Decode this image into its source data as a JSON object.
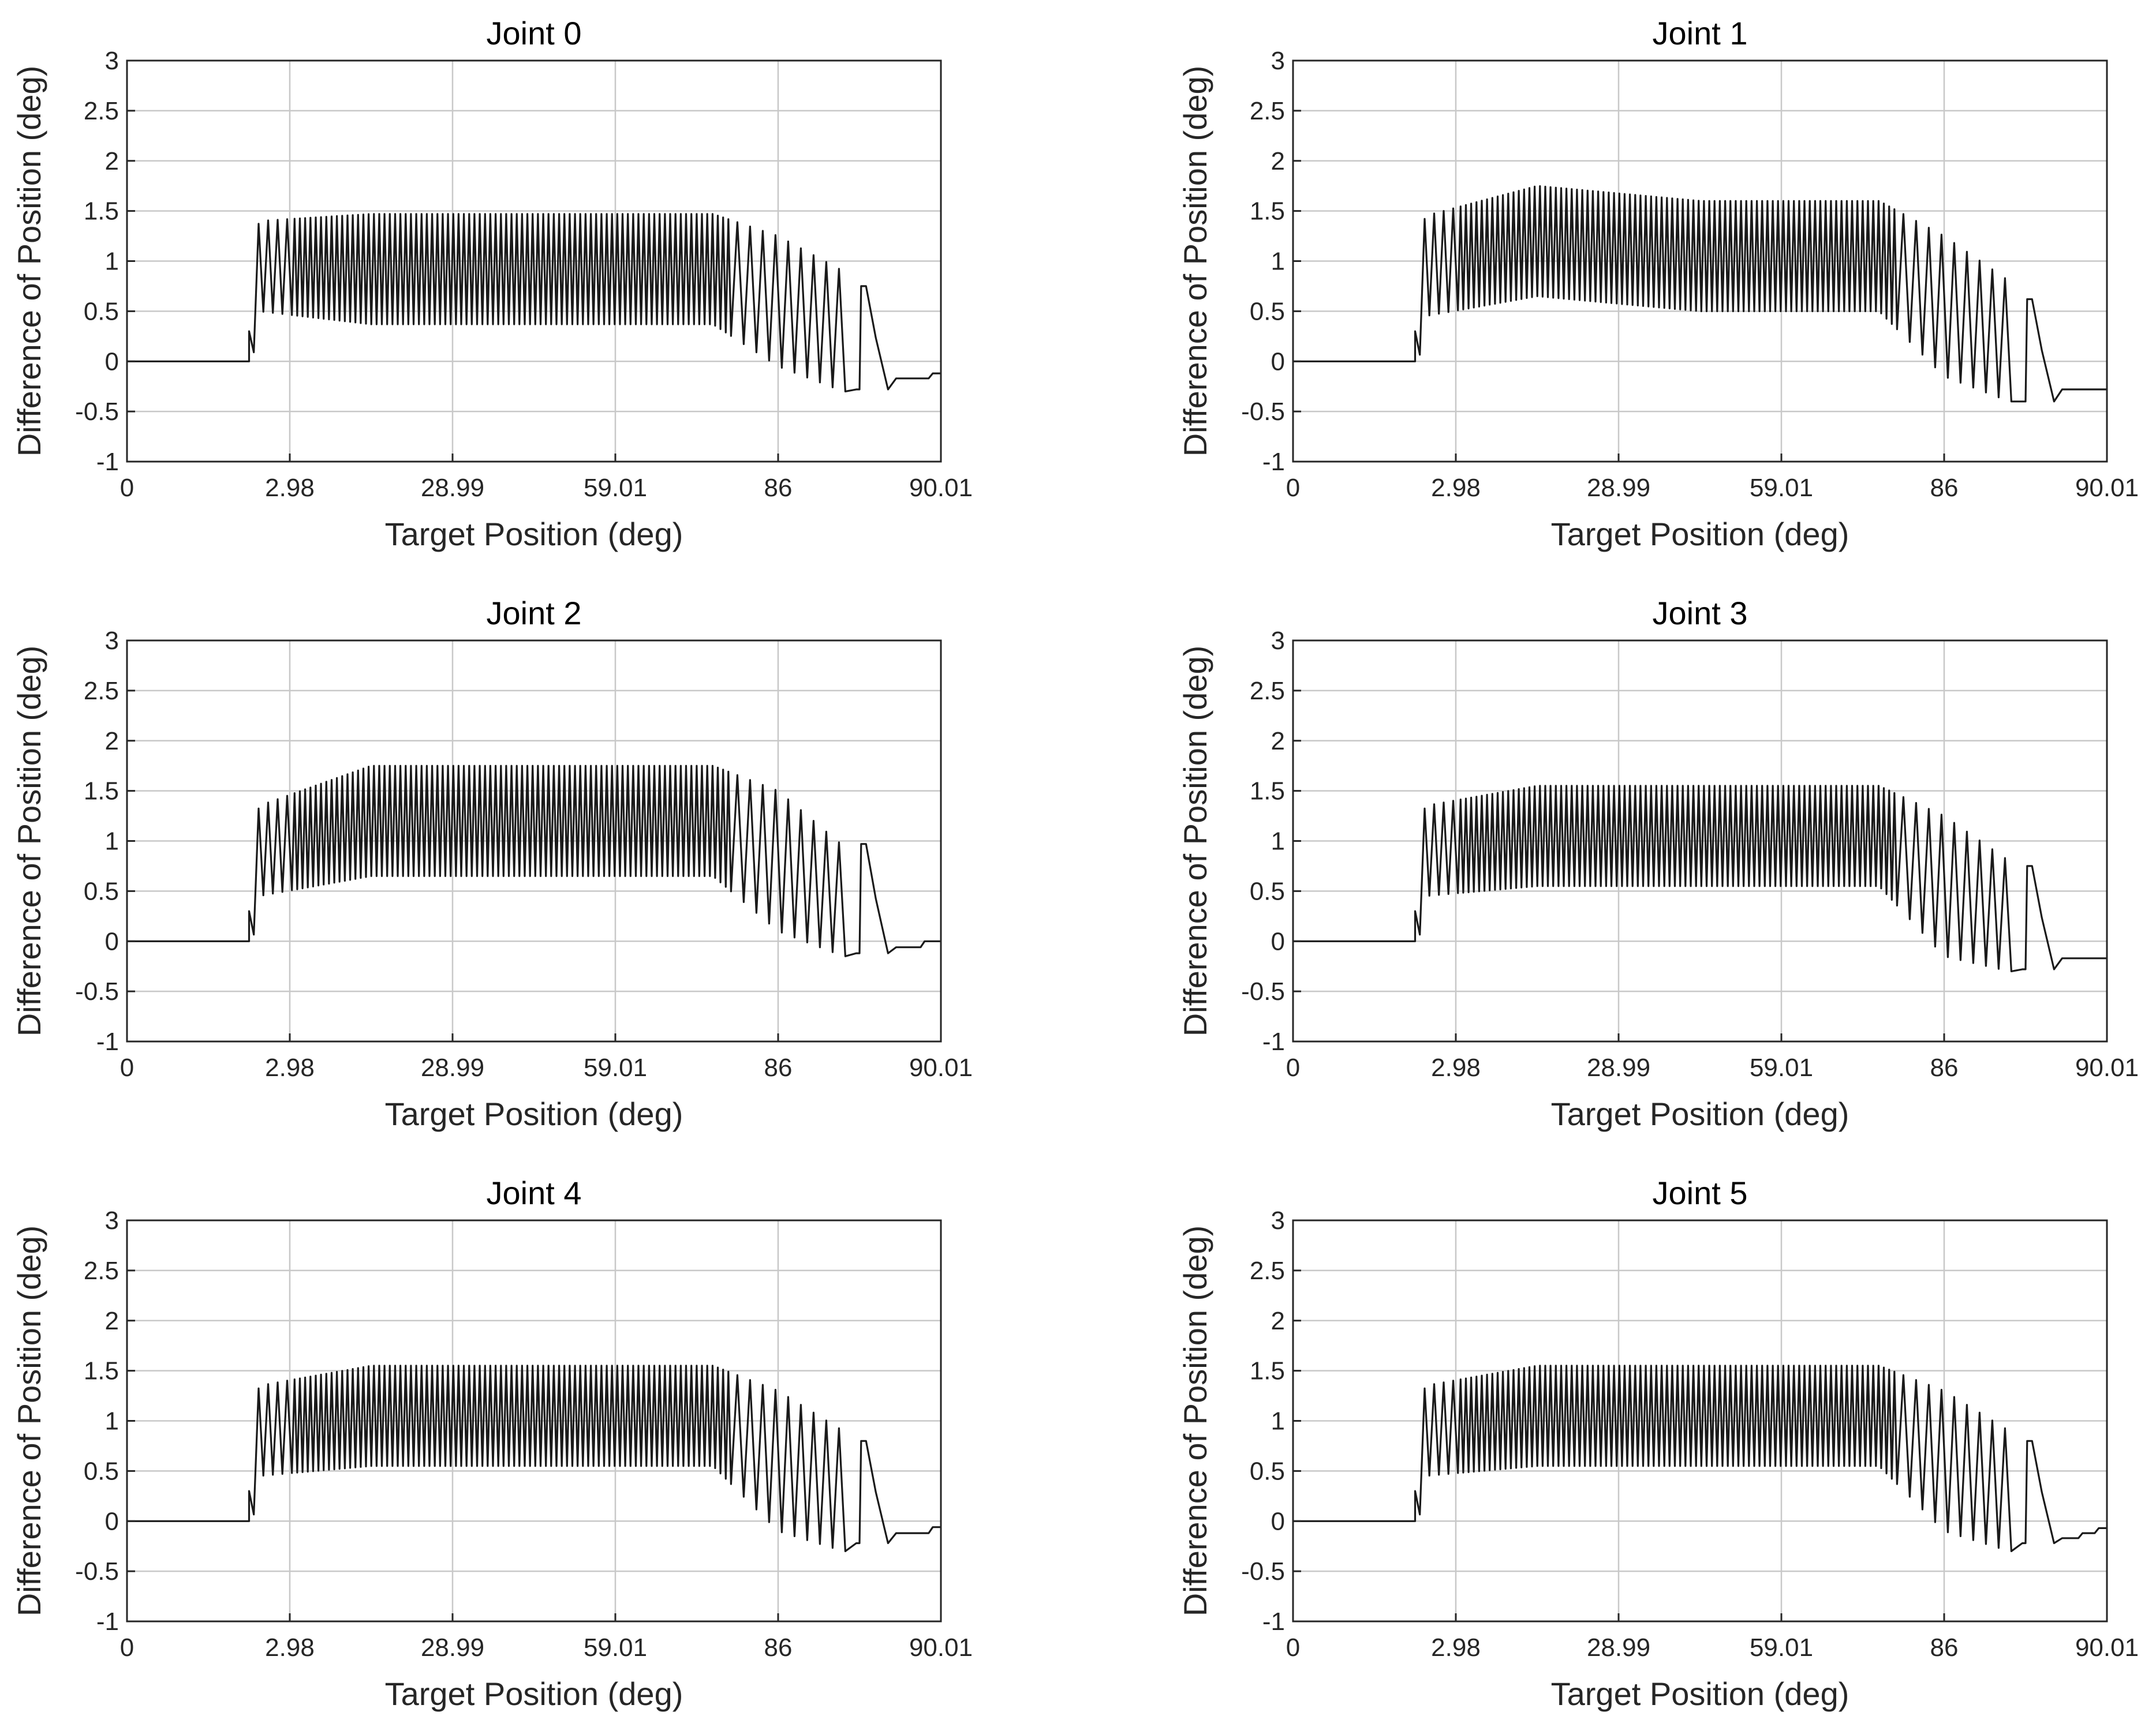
{
  "chart_data": [
    {
      "type": "line",
      "title": "Joint 0",
      "xlabel": "Target Position (deg)",
      "ylabel": "Difference of Position (deg)",
      "ylim": [
        -1,
        3
      ],
      "yticks": [
        -1,
        -0.5,
        0,
        0.5,
        1,
        1.5,
        2,
        2.5,
        3
      ],
      "ytick_labels": [
        "-1",
        "-0.5",
        "0",
        "0.5",
        "1",
        "1.5",
        "2",
        "2.5",
        "3"
      ],
      "xtick_labels": [
        "0",
        "2.98",
        "28.99",
        "59.01",
        "86",
        "90.01"
      ],
      "grid": true,
      "series": [
        {
          "name": "Joint 0",
          "color": "#1a1a1a",
          "profile": [
            [
              0.15,
              0.0
            ],
            [
              0.162,
              0.95
            ],
            [
              0.3,
              0.92
            ],
            [
              0.5,
              0.92
            ],
            [
              0.72,
              0.92
            ],
            [
              0.8,
              0.6
            ],
            [
              0.88,
              0.3
            ]
          ],
          "amplitude": [
            [
              0.15,
              0.3
            ],
            [
              0.162,
              0.45
            ],
            [
              0.3,
              0.55
            ],
            [
              0.72,
              0.55
            ],
            [
              0.8,
              0.65
            ],
            [
              0.88,
              0.6
            ]
          ],
          "osc_step": 0.0065,
          "late_spike": {
            "x": 0.9,
            "peak": 0.75,
            "floor": -0.28
          },
          "tail": [
            [
              0.935,
              -0.28
            ],
            [
              0.945,
              -0.17
            ],
            [
              0.985,
              -0.17
            ],
            [
              0.99,
              -0.12
            ],
            [
              1.0,
              -0.12
            ]
          ]
        }
      ]
    },
    {
      "type": "line",
      "title": "Joint 1",
      "xlabel": "Target Position (deg)",
      "ylabel": "Difference of Position (deg)",
      "ylim": [
        -1,
        3
      ],
      "yticks": [
        -1,
        -0.5,
        0,
        0.5,
        1,
        1.5,
        2,
        2.5,
        3
      ],
      "ytick_labels": [
        "-1",
        "-0.5",
        "0",
        "0.5",
        "1",
        "1.5",
        "2",
        "2.5",
        "3"
      ],
      "xtick_labels": [
        "0",
        "2.98",
        "28.99",
        "59.01",
        "86",
        "90.01"
      ],
      "grid": true,
      "series": [
        {
          "name": "Joint 1",
          "color": "#1a1a1a",
          "profile": [
            [
              0.15,
              0.0
            ],
            [
              0.162,
              0.95
            ],
            [
              0.3,
              1.2
            ],
            [
              0.5,
              1.05
            ],
            [
              0.72,
              1.05
            ],
            [
              0.8,
              0.55
            ],
            [
              0.88,
              0.2
            ]
          ],
          "amplitude": [
            [
              0.15,
              0.3
            ],
            [
              0.162,
              0.5
            ],
            [
              0.3,
              0.55
            ],
            [
              0.72,
              0.55
            ],
            [
              0.8,
              0.7
            ],
            [
              0.88,
              0.6
            ]
          ],
          "osc_step": 0.0065,
          "late_spike": {
            "x": 0.9,
            "peak": 0.62,
            "floor": -0.4
          },
          "tail": [
            [
              0.935,
              -0.4
            ],
            [
              0.945,
              -0.28
            ],
            [
              1.0,
              -0.28
            ]
          ]
        }
      ]
    },
    {
      "type": "line",
      "title": "Joint 2",
      "xlabel": "Target Position (deg)",
      "ylabel": "Difference of Position (deg)",
      "ylim": [
        -1,
        3
      ],
      "yticks": [
        -1,
        -0.5,
        0,
        0.5,
        1,
        1.5,
        2,
        2.5,
        3
      ],
      "ytick_labels": [
        "-1",
        "-0.5",
        "0",
        "0.5",
        "1",
        "1.5",
        "2",
        "2.5",
        "3"
      ],
      "xtick_labels": [
        "0",
        "2.98",
        "28.99",
        "59.01",
        "86",
        "90.01"
      ],
      "grid": true,
      "series": [
        {
          "name": "Joint 2",
          "color": "#1a1a1a",
          "profile": [
            [
              0.15,
              0.0
            ],
            [
              0.162,
              0.9
            ],
            [
              0.3,
              1.2
            ],
            [
              0.72,
              1.2
            ],
            [
              0.8,
              0.8
            ],
            [
              0.88,
              0.4
            ]
          ],
          "amplitude": [
            [
              0.15,
              0.3
            ],
            [
              0.162,
              0.45
            ],
            [
              0.3,
              0.55
            ],
            [
              0.72,
              0.55
            ],
            [
              0.8,
              0.7
            ],
            [
              0.88,
              0.55
            ]
          ],
          "osc_step": 0.0065,
          "late_spike": {
            "x": 0.9,
            "peak": 0.97,
            "floor": -0.12
          },
          "tail": [
            [
              0.935,
              -0.12
            ],
            [
              0.945,
              -0.06
            ],
            [
              0.975,
              -0.06
            ],
            [
              0.98,
              0.0
            ],
            [
              1.0,
              0.0
            ]
          ]
        }
      ]
    },
    {
      "type": "line",
      "title": "Joint 3",
      "xlabel": "Target Position (deg)",
      "ylabel": "Difference of Position (deg)",
      "ylim": [
        -1,
        3
      ],
      "yticks": [
        -1,
        -0.5,
        0,
        0.5,
        1,
        1.5,
        2,
        2.5,
        3
      ],
      "ytick_labels": [
        "-1",
        "-0.5",
        "0",
        "0.5",
        "1",
        "1.5",
        "2",
        "2.5",
        "3"
      ],
      "xtick_labels": [
        "0",
        "2.98",
        "28.99",
        "59.01",
        "86",
        "90.01"
      ],
      "grid": true,
      "series": [
        {
          "name": "Joint 3",
          "color": "#1a1a1a",
          "profile": [
            [
              0.15,
              0.0
            ],
            [
              0.162,
              0.9
            ],
            [
              0.3,
              1.05
            ],
            [
              0.72,
              1.05
            ],
            [
              0.8,
              0.55
            ],
            [
              0.88,
              0.25
            ]
          ],
          "amplitude": [
            [
              0.15,
              0.3
            ],
            [
              0.162,
              0.45
            ],
            [
              0.3,
              0.5
            ],
            [
              0.72,
              0.5
            ],
            [
              0.8,
              0.7
            ],
            [
              0.88,
              0.55
            ]
          ],
          "osc_step": 0.0065,
          "late_spike": {
            "x": 0.9,
            "peak": 0.75,
            "floor": -0.28
          },
          "tail": [
            [
              0.935,
              -0.28
            ],
            [
              0.945,
              -0.17
            ],
            [
              1.0,
              -0.17
            ]
          ]
        }
      ]
    },
    {
      "type": "line",
      "title": "Joint 4",
      "xlabel": "Target Position (deg)",
      "ylabel": "Difference of Position (deg)",
      "ylim": [
        -1,
        3
      ],
      "yticks": [
        -1,
        -0.5,
        0,
        0.5,
        1,
        1.5,
        2,
        2.5,
        3
      ],
      "ytick_labels": [
        "-1",
        "-0.5",
        "0",
        "0.5",
        "1",
        "1.5",
        "2",
        "2.5",
        "3"
      ],
      "xtick_labels": [
        "0",
        "2.98",
        "28.99",
        "59.01",
        "86",
        "90.01"
      ],
      "grid": true,
      "series": [
        {
          "name": "Joint 4",
          "color": "#1a1a1a",
          "profile": [
            [
              0.15,
              0.0
            ],
            [
              0.162,
              0.9
            ],
            [
              0.3,
              1.05
            ],
            [
              0.72,
              1.05
            ],
            [
              0.8,
              0.6
            ],
            [
              0.88,
              0.3
            ]
          ],
          "amplitude": [
            [
              0.15,
              0.3
            ],
            [
              0.162,
              0.45
            ],
            [
              0.3,
              0.5
            ],
            [
              0.72,
              0.5
            ],
            [
              0.8,
              0.7
            ],
            [
              0.88,
              0.6
            ]
          ],
          "osc_step": 0.0065,
          "late_spike": {
            "x": 0.9,
            "peak": 0.8,
            "floor": -0.22
          },
          "tail": [
            [
              0.935,
              -0.22
            ],
            [
              0.945,
              -0.12
            ],
            [
              0.985,
              -0.12
            ],
            [
              0.99,
              -0.06
            ],
            [
              1.0,
              -0.06
            ]
          ]
        }
      ]
    },
    {
      "type": "line",
      "title": "Joint 5",
      "xlabel": "Target Position (deg)",
      "ylabel": "Difference of Position (deg)",
      "ylim": [
        -1,
        3
      ],
      "yticks": [
        -1,
        -0.5,
        0,
        0.5,
        1,
        1.5,
        2,
        2.5,
        3
      ],
      "ytick_labels": [
        "-1",
        "-0.5",
        "0",
        "0.5",
        "1",
        "1.5",
        "2",
        "2.5",
        "3"
      ],
      "xtick_labels": [
        "0",
        "2.98",
        "28.99",
        "59.01",
        "86",
        "90.01"
      ],
      "grid": true,
      "series": [
        {
          "name": "Joint 5",
          "color": "#1a1a1a",
          "profile": [
            [
              0.15,
              0.0
            ],
            [
              0.162,
              0.9
            ],
            [
              0.3,
              1.05
            ],
            [
              0.72,
              1.05
            ],
            [
              0.8,
              0.6
            ],
            [
              0.88,
              0.3
            ]
          ],
          "amplitude": [
            [
              0.15,
              0.3
            ],
            [
              0.162,
              0.45
            ],
            [
              0.3,
              0.5
            ],
            [
              0.72,
              0.5
            ],
            [
              0.8,
              0.7
            ],
            [
              0.88,
              0.6
            ]
          ],
          "osc_step": 0.0065,
          "late_spike": {
            "x": 0.9,
            "peak": 0.8,
            "floor": -0.22
          },
          "tail": [
            [
              0.935,
              -0.22
            ],
            [
              0.945,
              -0.17
            ],
            [
              0.965,
              -0.17
            ],
            [
              0.97,
              -0.12
            ],
            [
              0.985,
              -0.12
            ],
            [
              0.99,
              -0.07
            ],
            [
              1.0,
              -0.07
            ]
          ]
        }
      ]
    }
  ]
}
